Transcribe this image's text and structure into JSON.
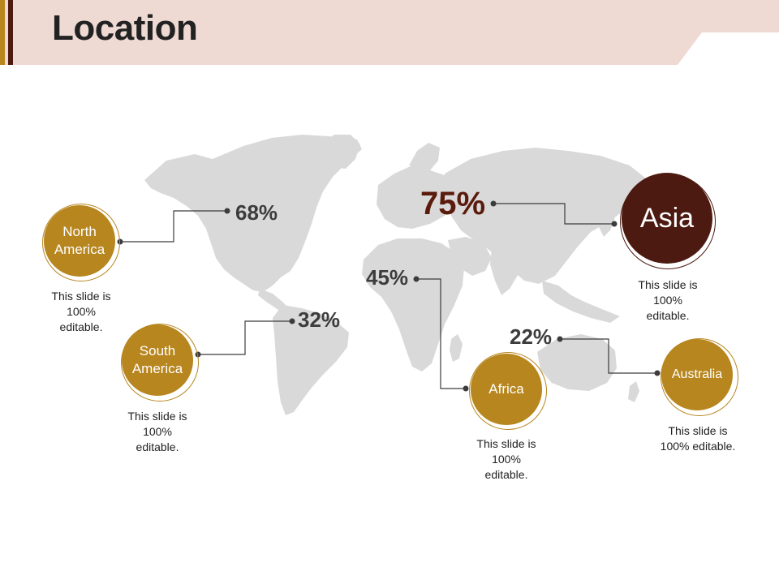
{
  "slide": {
    "title": "Location"
  },
  "colors": {
    "gold": "#b7861f",
    "dark_brown": "#4c1a10",
    "header_bg": "#efd9d3",
    "map_gray": "#d9d9d9"
  },
  "regions": [
    {
      "id": "north-america",
      "name": "North America",
      "percent": "68%",
      "note": "This slide is 100% editable."
    },
    {
      "id": "south-america",
      "name": "South America",
      "percent": "32%",
      "note": "This slide is 100% editable."
    },
    {
      "id": "africa",
      "name": "Africa",
      "percent": "45%",
      "note": "This slide is 100% editable."
    },
    {
      "id": "asia",
      "name": "Asia",
      "percent": "75%",
      "note": "This slide is 100% editable."
    },
    {
      "id": "australia",
      "name": "Australia",
      "percent": "22%",
      "note": "This slide is 100% editable."
    }
  ]
}
